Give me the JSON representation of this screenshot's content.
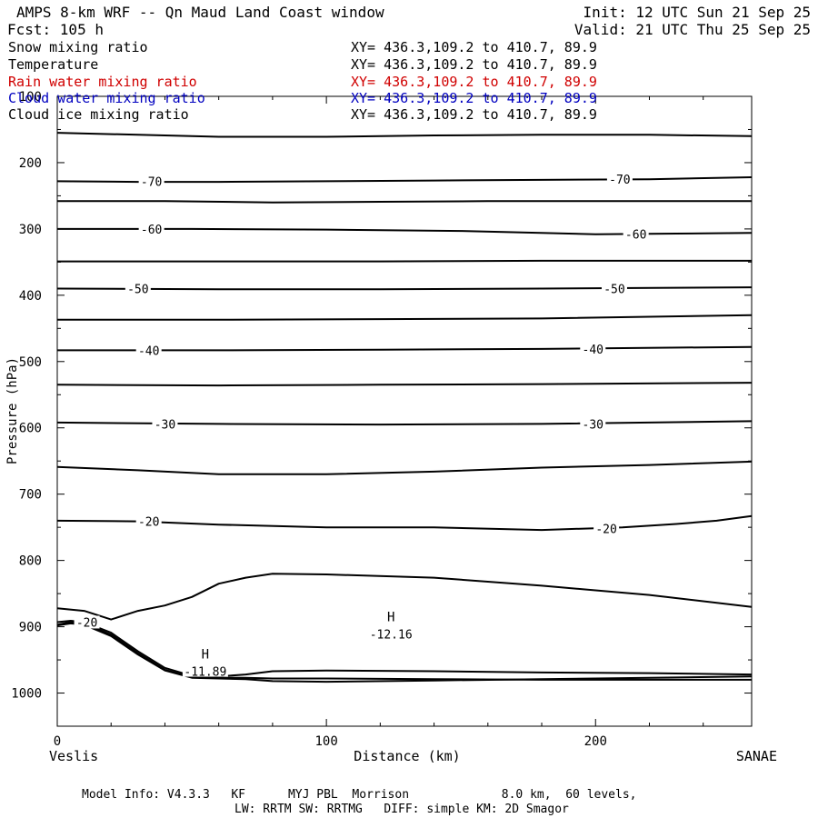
{
  "header": {
    "title": "AMPS 8-km WRF -- Qn Maud Land Coast window",
    "forecast": "Fcst:  105 h",
    "init": "Init: 12 UTC Sun 21 Sep 25",
    "valid": "Valid: 21 UTC Thu 25 Sep 25"
  },
  "legend": [
    {
      "label": "Snow mixing ratio",
      "xy": "XY= 436.3,109.2 to 410.7, 89.9",
      "color": "#000000"
    },
    {
      "label": "Temperature",
      "xy": "XY= 436.3,109.2 to 410.7, 89.9",
      "color": "#000000"
    },
    {
      "label": "Rain water mixing ratio",
      "xy": "XY= 436.3,109.2 to 410.7, 89.9",
      "color": "#d00000"
    },
    {
      "label": "Cloud water mixing ratio",
      "xy": "XY= 436.3,109.2 to 410.7, 89.9",
      "color": "#0000c0"
    },
    {
      "label": "Cloud ice mixing ratio",
      "xy": "XY= 436.3,109.2 to 410.7, 89.9",
      "color": "#000000"
    }
  ],
  "footer": {
    "line1": "Model Info: V4.3.3   KF      MYJ PBL  Morrison             8.0 km,  60 levels,",
    "line2": "LW: RRTM SW: RRTMG   DIFF: simple KM: 2D Smagor"
  },
  "chart_data": {
    "type": "line",
    "title": "AMPS 8-km WRF -- Qn Maud Land Coast window",
    "xlabel": "Distance (km)",
    "ylabel": "Pressure (hPa)",
    "xlim": [
      0,
      258
    ],
    "ylim": [
      1050,
      100
    ],
    "x_ticks": [
      0,
      100,
      200
    ],
    "y_ticks": [
      100,
      200,
      300,
      400,
      500,
      600,
      700,
      800,
      900,
      1000
    ],
    "x_end_labels": {
      "left": "Veslis",
      "right": "SANAE"
    },
    "contours": [
      {
        "level": null,
        "points": [
          [
            0,
            155
          ],
          [
            30,
            158
          ],
          [
            60,
            161
          ],
          [
            100,
            161
          ],
          [
            140,
            159
          ],
          [
            180,
            158
          ],
          [
            220,
            158
          ],
          [
            258,
            160
          ]
        ]
      },
      {
        "level": -70,
        "points": [
          [
            0,
            228
          ],
          [
            30,
            229
          ],
          [
            60,
            229
          ],
          [
            100,
            228
          ],
          [
            140,
            227
          ],
          [
            180,
            226
          ],
          [
            220,
            225
          ],
          [
            258,
            222
          ]
        ]
      },
      {
        "level": null,
        "points": [
          [
            0,
            258
          ],
          [
            40,
            258
          ],
          [
            80,
            260
          ],
          [
            120,
            259
          ],
          [
            160,
            258
          ],
          [
            200,
            258
          ],
          [
            258,
            258
          ]
        ]
      },
      {
        "level": -60,
        "points": [
          [
            0,
            300
          ],
          [
            50,
            300
          ],
          [
            100,
            301
          ],
          [
            150,
            303
          ],
          [
            200,
            308
          ],
          [
            230,
            307
          ],
          [
            258,
            306
          ]
        ]
      },
      {
        "level": null,
        "points": [
          [
            0,
            349
          ],
          [
            60,
            349
          ],
          [
            120,
            349
          ],
          [
            180,
            348
          ],
          [
            258,
            348
          ]
        ]
      },
      {
        "level": -50,
        "points": [
          [
            0,
            390
          ],
          [
            60,
            391
          ],
          [
            120,
            391
          ],
          [
            180,
            390
          ],
          [
            258,
            388
          ]
        ]
      },
      {
        "level": null,
        "points": [
          [
            0,
            437
          ],
          [
            60,
            437
          ],
          [
            120,
            436
          ],
          [
            180,
            435
          ],
          [
            258,
            430
          ]
        ]
      },
      {
        "level": -40,
        "points": [
          [
            0,
            483
          ],
          [
            60,
            483
          ],
          [
            120,
            482
          ],
          [
            180,
            481
          ],
          [
            258,
            478
          ]
        ]
      },
      {
        "level": null,
        "points": [
          [
            0,
            535
          ],
          [
            60,
            536
          ],
          [
            120,
            535
          ],
          [
            180,
            534
          ],
          [
            258,
            532
          ]
        ]
      },
      {
        "level": -30,
        "points": [
          [
            0,
            592
          ],
          [
            60,
            594
          ],
          [
            120,
            595
          ],
          [
            180,
            594
          ],
          [
            258,
            590
          ]
        ]
      },
      {
        "level": null,
        "points": [
          [
            0,
            659
          ],
          [
            30,
            664
          ],
          [
            60,
            670
          ],
          [
            100,
            670
          ],
          [
            140,
            666
          ],
          [
            180,
            660
          ],
          [
            220,
            656
          ],
          [
            258,
            651
          ]
        ]
      },
      {
        "level": -20,
        "points": [
          [
            0,
            740
          ],
          [
            30,
            741
          ],
          [
            60,
            746
          ],
          [
            100,
            750
          ],
          [
            140,
            750
          ],
          [
            180,
            754
          ],
          [
            210,
            750
          ],
          [
            230,
            745
          ],
          [
            245,
            740
          ],
          [
            258,
            733
          ]
        ]
      },
      {
        "level": null,
        "points": [
          [
            0,
            872
          ],
          [
            10,
            876
          ],
          [
            20,
            889
          ],
          [
            30,
            876
          ],
          [
            40,
            868
          ],
          [
            50,
            855
          ],
          [
            60,
            835
          ],
          [
            70,
            826
          ],
          [
            80,
            820
          ],
          [
            100,
            821
          ],
          [
            140,
            826
          ],
          [
            180,
            838
          ],
          [
            220,
            852
          ],
          [
            258,
            870
          ]
        ]
      },
      {
        "level": -20,
        "points": [
          [
            0,
            893
          ],
          [
            5,
            891
          ],
          [
            10,
            893
          ],
          [
            20,
            909
          ],
          [
            30,
            937
          ],
          [
            40,
            962
          ],
          [
            50,
            974
          ],
          [
            60,
            975
          ],
          [
            70,
            972
          ],
          [
            80,
            967
          ],
          [
            100,
            966
          ],
          [
            140,
            967
          ],
          [
            180,
            969
          ],
          [
            220,
            970
          ],
          [
            258,
            972
          ]
        ]
      },
      {
        "level": null,
        "points": [
          [
            0,
            897
          ],
          [
            5,
            893
          ],
          [
            10,
            895
          ],
          [
            20,
            912
          ],
          [
            30,
            940
          ],
          [
            40,
            965
          ],
          [
            50,
            976
          ],
          [
            60,
            977
          ],
          [
            70,
            977
          ],
          [
            80,
            978
          ],
          [
            100,
            978
          ],
          [
            140,
            979
          ],
          [
            180,
            980
          ],
          [
            220,
            980
          ],
          [
            258,
            980
          ]
        ]
      },
      {
        "level": null,
        "points": [
          [
            0,
            898
          ],
          [
            5,
            895
          ],
          [
            10,
            897
          ],
          [
            20,
            914
          ],
          [
            30,
            942
          ],
          [
            40,
            966
          ],
          [
            50,
            977
          ],
          [
            60,
            978
          ],
          [
            70,
            979
          ],
          [
            80,
            982
          ],
          [
            100,
            983
          ],
          [
            140,
            981
          ],
          [
            180,
            979
          ],
          [
            220,
            977
          ],
          [
            258,
            975
          ]
        ]
      }
    ],
    "contour_labels": [
      {
        "text": "-70",
        "x": 35,
        "p": 228
      },
      {
        "text": "-70",
        "x": 209,
        "p": 225
      },
      {
        "text": "-60",
        "x": 35,
        "p": 300
      },
      {
        "text": "-60",
        "x": 215,
        "p": 308
      },
      {
        "text": "-50",
        "x": 30,
        "p": 390
      },
      {
        "text": "-50",
        "x": 207,
        "p": 390
      },
      {
        "text": "-40",
        "x": 34,
        "p": 483
      },
      {
        "text": "-40",
        "x": 199,
        "p": 481
      },
      {
        "text": "-30",
        "x": 40,
        "p": 594
      },
      {
        "text": "-30",
        "x": 199,
        "p": 594
      },
      {
        "text": "-20",
        "x": 34,
        "p": 741
      },
      {
        "text": "-20",
        "x": 204,
        "p": 752
      },
      {
        "text": "-20",
        "x": 11,
        "p": 893
      }
    ],
    "extrema": [
      {
        "symbol": "H",
        "value": "-12.16",
        "x": 124,
        "p": 907
      },
      {
        "symbol": "H",
        "value": "-11.89",
        "x": 55,
        "p": 963
      }
    ]
  }
}
